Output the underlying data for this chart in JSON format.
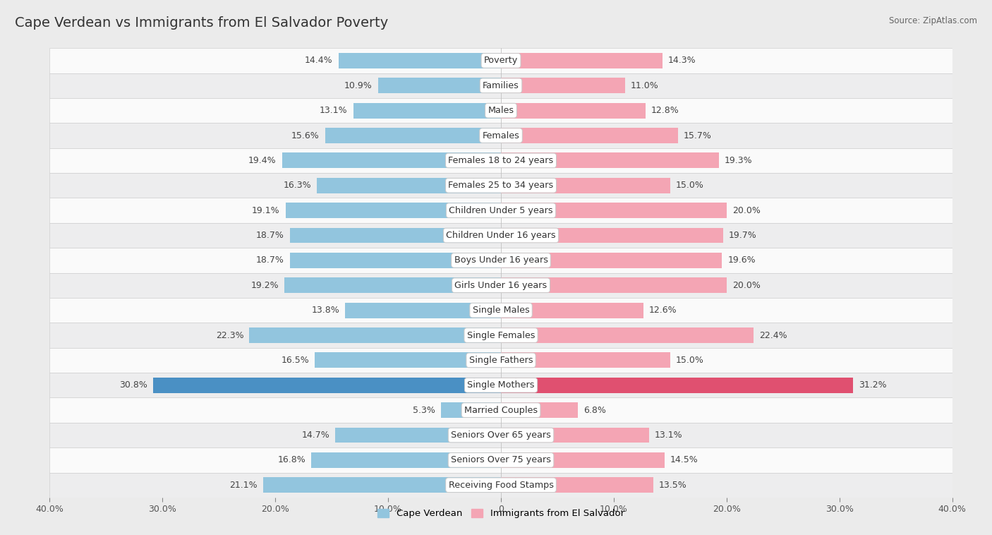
{
  "title": "Cape Verdean vs Immigrants from El Salvador Poverty",
  "source": "Source: ZipAtlas.com",
  "categories": [
    "Poverty",
    "Families",
    "Males",
    "Females",
    "Females 18 to 24 years",
    "Females 25 to 34 years",
    "Children Under 5 years",
    "Children Under 16 years",
    "Boys Under 16 years",
    "Girls Under 16 years",
    "Single Males",
    "Single Females",
    "Single Fathers",
    "Single Mothers",
    "Married Couples",
    "Seniors Over 65 years",
    "Seniors Over 75 years",
    "Receiving Food Stamps"
  ],
  "cape_verdean": [
    14.4,
    10.9,
    13.1,
    15.6,
    19.4,
    16.3,
    19.1,
    18.7,
    18.7,
    19.2,
    13.8,
    22.3,
    16.5,
    30.8,
    5.3,
    14.7,
    16.8,
    21.1
  ],
  "el_salvador": [
    14.3,
    11.0,
    12.8,
    15.7,
    19.3,
    15.0,
    20.0,
    19.7,
    19.6,
    20.0,
    12.6,
    22.4,
    15.0,
    31.2,
    6.8,
    13.1,
    14.5,
    13.5
  ],
  "cape_verdean_color": "#92C5DE",
  "el_salvador_color": "#F4A5B4",
  "single_mothers_cape_color": "#4A90C4",
  "single_mothers_el_color": "#E05070",
  "bar_height": 0.62,
  "xlim": 40.0,
  "bg_color": "#EBEBEB",
  "row_colors": [
    "#FAFAFA",
    "#EDEDEE"
  ],
  "label_fontsize": 9.2,
  "value_fontsize": 9.0,
  "title_fontsize": 14
}
